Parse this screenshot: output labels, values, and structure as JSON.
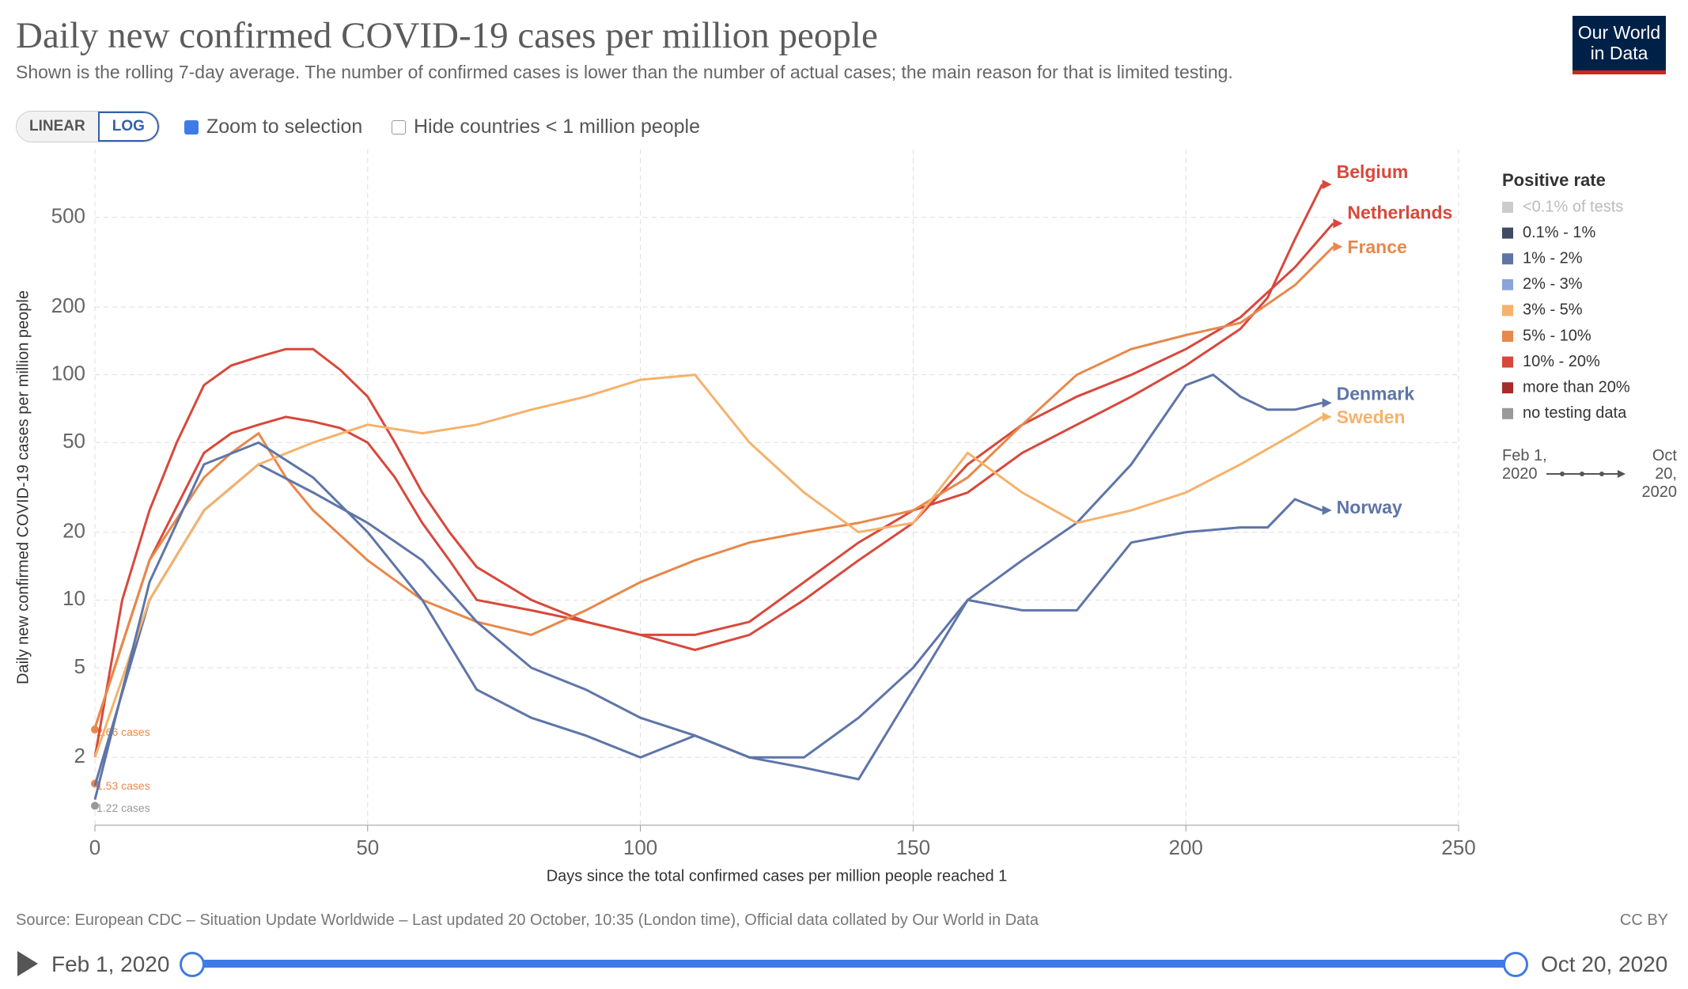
{
  "header": {
    "logo": "Our World in Data",
    "controls": {
      "linear": "LINEAR",
      "log": "LOG",
      "zoom": "Zoom to selection",
      "hide": "Hide countries < 1 million people"
    }
  },
  "chart_data": {
    "type": "line",
    "title": "Daily new confirmed COVID-19 cases per million people",
    "subtitle": "Shown is the rolling 7-day average. The number of confirmed cases is lower than the number of actual cases; the main reason for that is limited testing.",
    "x_label": "Days since the total confirmed cases per million people reached 1",
    "y_label": "Daily new confirmed COVID-19 cases per million people",
    "log_y": true,
    "grid": true,
    "xlim": [
      0,
      250
    ],
    "xticks": [
      0,
      50,
      100,
      150,
      200,
      250
    ],
    "ylim": [
      1,
      1000
    ],
    "yticks": [
      2,
      5,
      10,
      20,
      50,
      100,
      200,
      500
    ],
    "annotations": [
      {
        "value": 2.66,
        "label": "2.66 cases",
        "color": "#e8884a"
      },
      {
        "value": 1.53,
        "label": "1.53 cases",
        "color": "#e8884a"
      },
      {
        "value": 1.22,
        "label": "1.22 cases",
        "color": "#999999"
      }
    ],
    "series": [
      {
        "name": "Belgium",
        "color": "#d8483c",
        "x": [
          0,
          5,
          10,
          15,
          20,
          25,
          30,
          35,
          40,
          45,
          50,
          55,
          60,
          65,
          70,
          80,
          90,
          100,
          110,
          120,
          130,
          140,
          150,
          160,
          170,
          180,
          190,
          200,
          210,
          215,
          220,
          225
        ],
        "values": [
          2,
          10,
          25,
          50,
          90,
          110,
          120,
          130,
          130,
          105,
          80,
          50,
          30,
          20,
          14,
          10,
          8,
          7,
          7,
          8,
          12,
          18,
          25,
          30,
          45,
          60,
          80,
          110,
          160,
          220,
          400,
          700
        ]
      },
      {
        "name": "Netherlands",
        "color": "#d8483c",
        "x": [
          0,
          10,
          20,
          25,
          30,
          35,
          40,
          45,
          50,
          55,
          60,
          65,
          70,
          80,
          90,
          100,
          110,
          120,
          130,
          140,
          150,
          160,
          170,
          180,
          190,
          200,
          210,
          220,
          227
        ],
        "values": [
          2.7,
          15,
          45,
          55,
          60,
          65,
          62,
          58,
          50,
          35,
          22,
          15,
          10,
          9,
          8,
          7,
          6,
          7,
          10,
          15,
          22,
          40,
          60,
          80,
          100,
          130,
          180,
          300,
          470
        ]
      },
      {
        "name": "France",
        "color": "#e8884a",
        "x": [
          0,
          10,
          20,
          25,
          30,
          35,
          40,
          50,
          60,
          70,
          80,
          90,
          100,
          110,
          120,
          130,
          140,
          150,
          160,
          170,
          180,
          190,
          200,
          210,
          220,
          227
        ],
        "values": [
          2.7,
          15,
          35,
          45,
          55,
          35,
          25,
          15,
          10,
          8,
          7,
          9,
          12,
          15,
          18,
          20,
          22,
          25,
          35,
          60,
          100,
          130,
          150,
          170,
          250,
          370
        ]
      },
      {
        "name": "Denmark",
        "color": "#5e75a8",
        "x": [
          0,
          10,
          20,
          30,
          40,
          50,
          60,
          70,
          80,
          90,
          100,
          110,
          120,
          130,
          140,
          150,
          160,
          170,
          180,
          190,
          200,
          205,
          210,
          215,
          220,
          225
        ],
        "values": [
          1.5,
          10,
          25,
          40,
          30,
          22,
          15,
          8,
          5,
          4,
          3,
          2.5,
          2,
          2,
          3,
          5,
          10,
          15,
          22,
          40,
          90,
          100,
          80,
          70,
          70,
          75
        ]
      },
      {
        "name": "Sweden",
        "color": "#f5b26b",
        "x": [
          0,
          10,
          20,
          30,
          40,
          50,
          60,
          70,
          80,
          90,
          100,
          110,
          120,
          130,
          140,
          150,
          160,
          170,
          180,
          190,
          200,
          210,
          220,
          225
        ],
        "values": [
          2,
          10,
          25,
          40,
          50,
          60,
          55,
          60,
          70,
          80,
          95,
          100,
          50,
          30,
          20,
          22,
          45,
          30,
          22,
          25,
          30,
          40,
          55,
          65
        ]
      },
      {
        "name": "Norway",
        "color": "#5e75a8",
        "x": [
          0,
          10,
          20,
          30,
          40,
          50,
          60,
          70,
          80,
          90,
          100,
          110,
          120,
          130,
          140,
          150,
          160,
          170,
          180,
          190,
          200,
          210,
          215,
          220,
          225
        ],
        "values": [
          1.3,
          12,
          40,
          50,
          35,
          20,
          10,
          4,
          3,
          2.5,
          2,
          2.5,
          2,
          1.8,
          1.6,
          4,
          10,
          9,
          9,
          18,
          20,
          21,
          21,
          28,
          25
        ]
      }
    ],
    "legend": {
      "title": "Positive rate",
      "items": [
        {
          "label": "<0.1% of tests",
          "color": "#cccccc"
        },
        {
          "label": "0.1% - 1%",
          "color": "#3f4b63"
        },
        {
          "label": "1% - 2%",
          "color": "#5e75a8"
        },
        {
          "label": "2% - 3%",
          "color": "#8ca5d9"
        },
        {
          "label": "3% - 5%",
          "color": "#f5b26b"
        },
        {
          "label": "5% - 10%",
          "color": "#e8884a"
        },
        {
          "label": "10% - 20%",
          "color": "#d8483c"
        },
        {
          "label": "more than 20%",
          "color": "#a82a2a"
        },
        {
          "label": "no testing data",
          "color": "#999999"
        }
      ]
    }
  },
  "footer": {
    "source": "Source: European CDC – Situation Update Worldwide – Last updated 20 October, 10:35 (London time), Official data collated by Our World in Data",
    "license": "CC BY"
  },
  "timeline": {
    "start": "Feb 1, 2020",
    "end": "Oct 20, 2020"
  }
}
